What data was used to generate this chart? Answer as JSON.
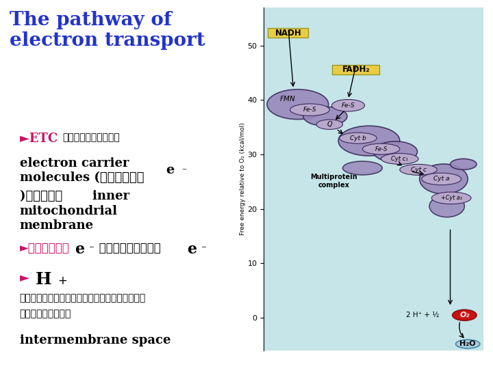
{
  "bg_color": "#ffffff",
  "title_color": "#2233cc",
  "right_panel_bg": "#c5e5e8",
  "bullet_color": "#cc1166",
  "blob_color": "#9988bb",
  "blob_edge_color": "#3a2a5a",
  "blob_color2": "#b8a8cc",
  "yellow_box_color": "#e8cc44",
  "yellow_box_edge": "#999922",
  "o2_color": "#cc1111",
  "h2o_color": "#aaccdd",
  "h2o_edge": "#4488aa",
  "graph_ylabel": "Free energy relative to O₂ (kcal/mol)",
  "yticks": [
    0,
    10,
    20,
    30,
    40,
    50
  ]
}
